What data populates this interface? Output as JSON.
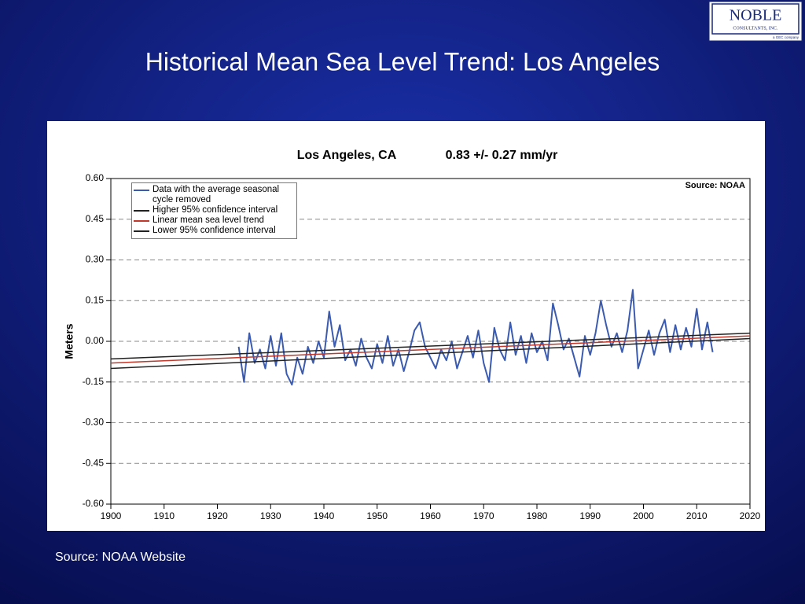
{
  "slide": {
    "title": "Historical Mean Sea Level Trend: Los Angeles",
    "source": "Source: NOAA Website"
  },
  "logo": {
    "name": "NOBLE",
    "tagline": "CONSULTANTS, INC.",
    "note": "a GEC company"
  },
  "chart_data": {
    "type": "line",
    "title": "Los Angeles, CA",
    "subtitle": "0.83 +/- 0.27 mm/yr",
    "annotation": "Source: NOAA",
    "ylabel": "Meters",
    "xlim": [
      1900,
      2020
    ],
    "xticks": [
      1900,
      1910,
      1920,
      1930,
      1940,
      1950,
      1960,
      1970,
      1980,
      1990,
      2000,
      2010,
      2020
    ],
    "ylim": [
      -0.6,
      0.6
    ],
    "yticks": [
      {
        "value": 0.6,
        "label": "0.60"
      },
      0.45,
      {
        "value": 0.3,
        "label": "0.30"
      },
      0.15,
      {
        "value": 0,
        "label": "0.00"
      },
      -0.15,
      {
        "value": -0.3,
        "label": "-0.30"
      },
      -0.45,
      {
        "value": -0.6,
        "label": "-0.60"
      }
    ],
    "grid": true,
    "legend": "top-left",
    "series": [
      {
        "name": "Data with the average seasonal cycle removed",
        "color": "#3b5bb0",
        "x": [
          1924,
          1925,
          1926,
          1927,
          1928,
          1929,
          1930,
          1931,
          1932,
          1933,
          1934,
          1935,
          1936,
          1937,
          1938,
          1939,
          1940,
          1941,
          1942,
          1943,
          1944,
          1945,
          1946,
          1947,
          1948,
          1949,
          1950,
          1951,
          1952,
          1953,
          1954,
          1955,
          1956,
          1957,
          1958,
          1959,
          1960,
          1961,
          1962,
          1963,
          1964,
          1965,
          1966,
          1967,
          1968,
          1969,
          1970,
          1971,
          1972,
          1973,
          1974,
          1975,
          1976,
          1977,
          1978,
          1979,
          1980,
          1981,
          1982,
          1983,
          1984,
          1985,
          1986,
          1987,
          1988,
          1989,
          1990,
          1991,
          1992,
          1993,
          1994,
          1995,
          1996,
          1997,
          1998,
          1999,
          2000,
          2001,
          2002,
          2003,
          2004,
          2005,
          2006,
          2007,
          2008,
          2009,
          2010,
          2011,
          2012,
          2013
        ],
        "values": [
          -0.02,
          -0.15,
          0.03,
          -0.08,
          -0.03,
          -0.1,
          0.02,
          -0.09,
          0.03,
          -0.12,
          -0.16,
          -0.06,
          -0.12,
          -0.02,
          -0.08,
          0.0,
          -0.06,
          0.11,
          -0.02,
          0.06,
          -0.07,
          -0.03,
          -0.09,
          0.01,
          -0.06,
          -0.1,
          -0.01,
          -0.08,
          0.02,
          -0.09,
          -0.03,
          -0.11,
          -0.04,
          0.04,
          0.07,
          -0.02,
          -0.06,
          -0.1,
          -0.03,
          -0.07,
          0.0,
          -0.1,
          -0.04,
          0.02,
          -0.06,
          0.04,
          -0.08,
          -0.15,
          0.05,
          -0.03,
          -0.07,
          0.07,
          -0.05,
          0.02,
          -0.08,
          0.03,
          -0.04,
          0.0,
          -0.07,
          0.14,
          0.06,
          -0.03,
          0.01,
          -0.06,
          -0.13,
          0.02,
          -0.05,
          0.03,
          0.15,
          0.06,
          -0.02,
          0.03,
          -0.04,
          0.04,
          0.19,
          -0.1,
          -0.03,
          0.04,
          -0.05,
          0.03,
          0.08,
          -0.04,
          0.06,
          -0.03,
          0.05,
          -0.02,
          0.12,
          -0.03,
          0.07,
          -0.04
        ]
      },
      {
        "name": "Higher 95% confidence interval",
        "color": "#222222",
        "x": [
          1900,
          2020
        ],
        "values": [
          -0.065,
          0.03
        ]
      },
      {
        "name": "Linear mean sea level trend",
        "color": "#c0392b",
        "x": [
          1900,
          2020
        ],
        "values": [
          -0.08,
          0.02
        ]
      },
      {
        "name": "Lower 95% confidence interval",
        "color": "#222222",
        "x": [
          1900,
          2020
        ],
        "values": [
          -0.1,
          0.01
        ]
      }
    ]
  }
}
